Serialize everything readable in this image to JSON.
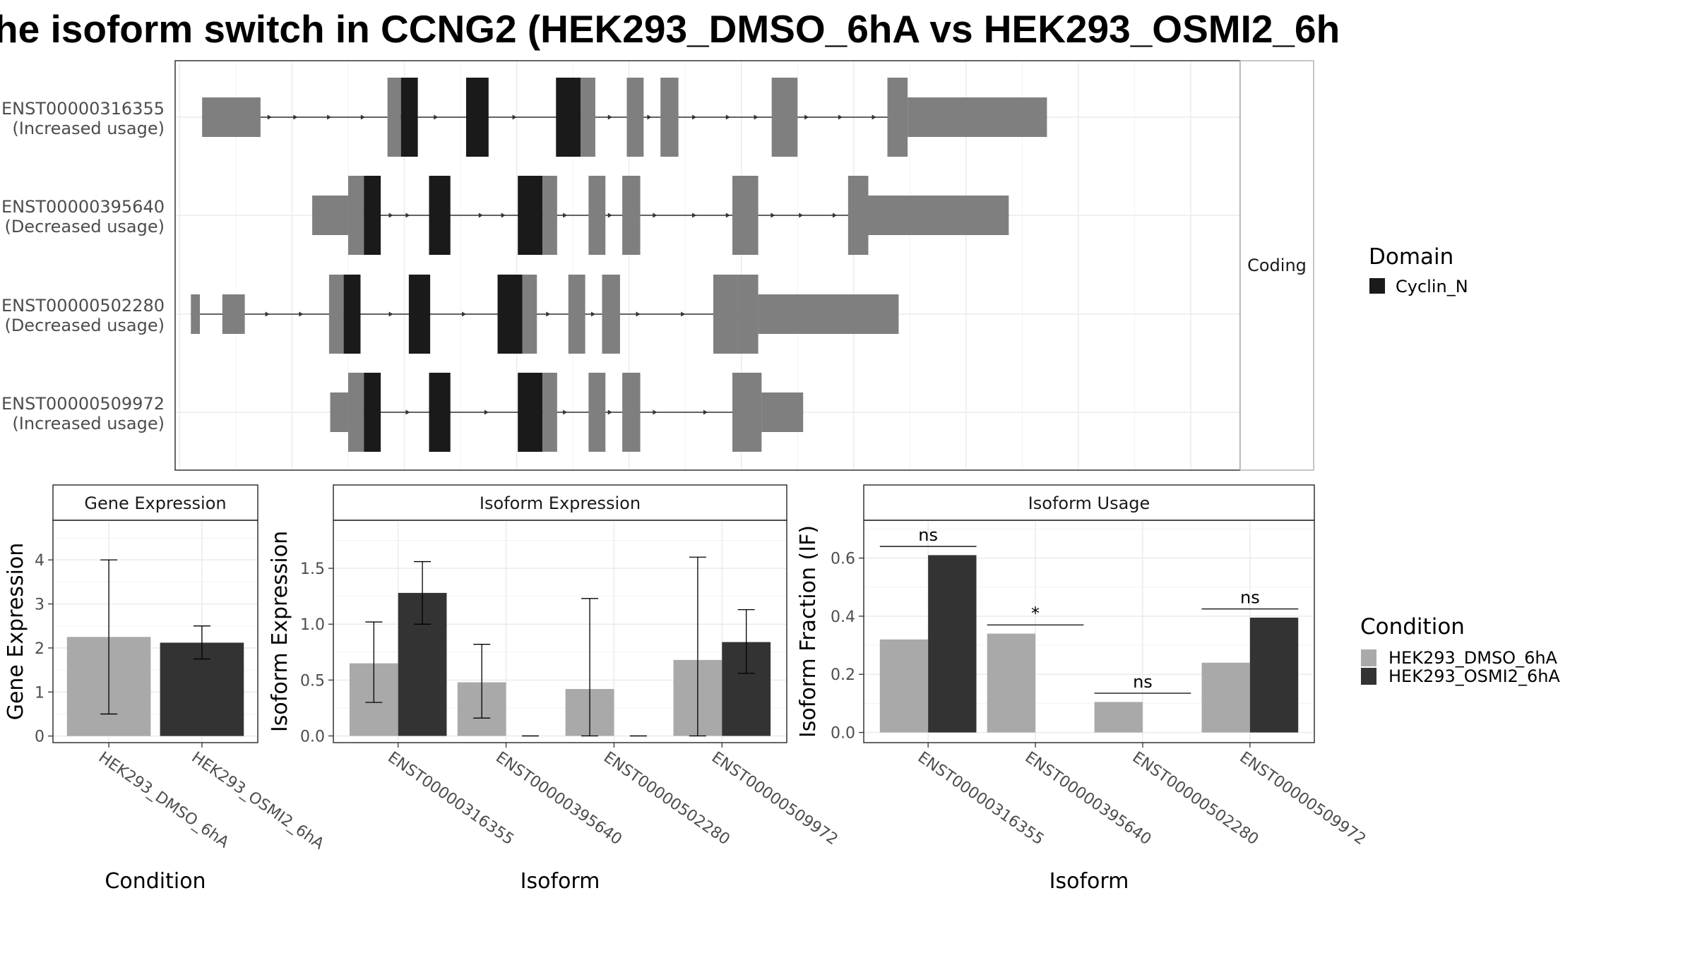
{
  "title": "he isoform switch in CCNG2 (HEK293_DMSO_6hA vs HEK293_OSMI2_6h",
  "colors": {
    "dmso": "#a9a9a9",
    "osmi2": "#333333",
    "exon_noncoding": "#7f7f7f",
    "domain_cyclin": "#1a1a1a",
    "intron_line": "#333333"
  },
  "transcript_panel": {
    "strip_label": "Coding",
    "transcripts": [
      {
        "id": "ENST00000316355",
        "usage": "(Increased usage)",
        "exons": [
          [
            20,
            72,
            "utr"
          ],
          [
            185,
            197,
            "cds"
          ],
          [
            197,
            212,
            "dom"
          ],
          [
            255,
            275,
            "dom"
          ],
          [
            335,
            357,
            "dom"
          ],
          [
            357,
            370,
            "cds"
          ],
          [
            398,
            413,
            "cds"
          ],
          [
            428,
            444,
            "cds"
          ],
          [
            527,
            550,
            "cds"
          ],
          [
            630,
            648,
            "cds"
          ],
          [
            648,
            772,
            "utr"
          ]
        ],
        "arrows": [
          82,
          105,
          135,
          165,
          200,
          230,
          265,
          300,
          340,
          385,
          420,
          460,
          490,
          515,
          560,
          590,
          620
        ]
      },
      {
        "id": "ENST00000395640",
        "usage": "(Decreased usage)",
        "exons": [
          [
            118,
            150,
            "utr"
          ],
          [
            150,
            164,
            "cds"
          ],
          [
            164,
            179,
            "dom"
          ],
          [
            222,
            241,
            "dom"
          ],
          [
            301,
            323,
            "dom"
          ],
          [
            323,
            336,
            "cds"
          ],
          [
            364,
            379,
            "cds"
          ],
          [
            394,
            410,
            "cds"
          ],
          [
            492,
            515,
            "cds"
          ],
          [
            595,
            613,
            "cds"
          ],
          [
            613,
            738,
            "utr"
          ]
        ],
        "arrows": [
          190,
          205,
          235,
          270,
          290,
          345,
          385,
          425,
          460,
          490,
          530,
          555,
          585
        ]
      },
      {
        "id": "ENST00000502280",
        "usage": "(Decreased usage)",
        "exons": [
          [
            10,
            18,
            "utr"
          ],
          [
            38,
            58,
            "utr"
          ],
          [
            133,
            146,
            "cds"
          ],
          [
            146,
            161,
            "dom"
          ],
          [
            204,
            223,
            "dom"
          ],
          [
            283,
            305,
            "dom"
          ],
          [
            305,
            318,
            "cds"
          ],
          [
            346,
            361,
            "cds"
          ],
          [
            376,
            392,
            "cds"
          ],
          [
            475,
            497,
            "cds"
          ],
          [
            497,
            515,
            "cds"
          ],
          [
            515,
            640,
            "utr"
          ]
        ],
        "arrows": [
          80,
          110,
          190,
          220,
          255,
          295,
          330,
          370,
          410,
          450,
          480,
          530,
          560,
          590
        ]
      },
      {
        "id": "ENST00000509972",
        "usage": "(Increased usage)",
        "exons": [
          [
            134,
            150,
            "utr"
          ],
          [
            150,
            164,
            "cds"
          ],
          [
            164,
            179,
            "dom"
          ],
          [
            222,
            241,
            "dom"
          ],
          [
            301,
            323,
            "dom"
          ],
          [
            323,
            336,
            "cds"
          ],
          [
            364,
            379,
            "cds"
          ],
          [
            394,
            410,
            "cds"
          ],
          [
            492,
            518,
            "cds"
          ],
          [
            518,
            555,
            "utr"
          ]
        ],
        "arrows": [
          205,
          240,
          275,
          345,
          385,
          425,
          470
        ]
      }
    ]
  },
  "legend_domain": {
    "title": "Domain",
    "items": [
      "Cyclin_N"
    ]
  },
  "legend_condition": {
    "title": "Condition",
    "items": [
      "HEK293_DMSO_6hA",
      "HEK293_OSMI2_6hA"
    ]
  },
  "chart_data": [
    {
      "type": "bar",
      "strip": "Gene Expression",
      "categories": [
        "HEK293_DMSO_6hA",
        "HEK293_OSMI2_6hA"
      ],
      "values": [
        2.25,
        2.12
      ],
      "errors": [
        [
          0.5,
          4.0
        ],
        [
          1.75,
          2.5
        ]
      ],
      "xlabel": "Condition",
      "ylabel": "Gene Expression",
      "ylim": [
        -0.15,
        4.9
      ],
      "yticks": [
        0,
        1,
        2,
        3,
        4
      ]
    },
    {
      "type": "bar",
      "strip": "Isoform Expression",
      "categories": [
        "ENST00000316355",
        "ENST00000395640",
        "ENST00000502280",
        "ENST00000509972"
      ],
      "series": [
        {
          "name": "HEK293_DMSO_6hA",
          "values": [
            0.65,
            0.48,
            0.42,
            0.68
          ],
          "errors": [
            [
              0.3,
              1.02
            ],
            [
              0.16,
              0.82
            ],
            [
              0.0,
              1.23
            ],
            [
              0.0,
              1.6
            ]
          ]
        },
        {
          "name": "HEK293_OSMI2_6hA",
          "values": [
            1.28,
            0.0,
            0.0,
            0.84
          ],
          "errors": [
            [
              1.0,
              1.56
            ],
            [
              0.0,
              0.0
            ],
            [
              0.0,
              0.0
            ],
            [
              0.56,
              1.13
            ]
          ]
        }
      ],
      "xlabel": "Isoform",
      "ylabel": "Isoform Expression",
      "ylim": [
        -0.06,
        1.93
      ],
      "yticks": [
        "0.0",
        "0.5",
        "1.0",
        "1.5"
      ]
    },
    {
      "type": "bar",
      "strip": "Isoform Usage",
      "categories": [
        "ENST00000316355",
        "ENST00000395640",
        "ENST00000502280",
        "ENST00000509972"
      ],
      "series": [
        {
          "name": "HEK293_DMSO_6hA",
          "values": [
            0.32,
            0.34,
            0.105,
            0.24
          ]
        },
        {
          "name": "HEK293_OSMI2_6hA",
          "values": [
            0.61,
            0.0,
            0.0,
            0.395
          ]
        }
      ],
      "significance": [
        {
          "label": "ns",
          "y": 0.64
        },
        {
          "label": "*",
          "y": 0.37
        },
        {
          "label": "ns",
          "y": 0.135
        },
        {
          "label": "ns",
          "y": 0.425
        }
      ],
      "xlabel": "Isoform",
      "ylabel": "Isoform Fraction (IF)",
      "ylim": [
        -0.035,
        0.73
      ],
      "yticks": [
        "0.0",
        "0.2",
        "0.4",
        "0.6"
      ]
    }
  ]
}
